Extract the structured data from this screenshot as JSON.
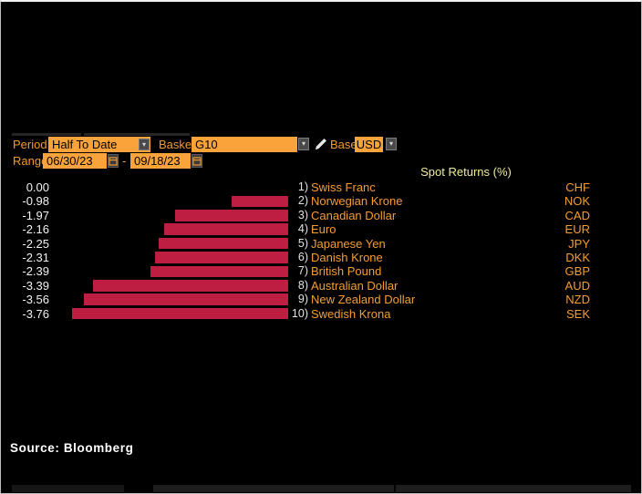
{
  "icons": {
    "chevron_down": "▾",
    "pencil": "pencil-icon",
    "calendar": "calendar-icon"
  },
  "colors": {
    "amber_field": "#f9a33a",
    "orange_text": "#f09c2f",
    "bar_red": "#be1e42",
    "title_yellow": "#f0ec9d",
    "background": "#000000"
  },
  "toolbar": {
    "period_label": "Period",
    "period_value": "Half To Date",
    "basket_label": "Basket",
    "basket_value": "G10",
    "base_label": "Base",
    "base_value": "USD",
    "range_label": "Range",
    "range_start": "06/30/23",
    "range_separator": "-",
    "range_end": "09/18/23"
  },
  "chart_data": {
    "type": "bar",
    "orientation": "horizontal",
    "title": "Spot Returns (%)",
    "xlim": [
      -4,
      0
    ],
    "bar_color": "#be1e42",
    "grid": false,
    "legend": "none",
    "categories": [
      "Swiss Franc",
      "Norwegian Krone",
      "Canadian Dollar",
      "Euro",
      "Japanese Yen",
      "Danish Krone",
      "British Pound",
      "Australian Dollar",
      "New Zealand Dollar",
      "Swedish Krona"
    ],
    "values": [
      0.0,
      -0.98,
      -1.97,
      -2.16,
      -2.25,
      -2.31,
      -2.39,
      -3.39,
      -3.56,
      -3.76
    ],
    "rows": [
      {
        "rank": "1)",
        "name": "Swiss Franc",
        "code": "CHF",
        "value": 0.0,
        "display": "0.00"
      },
      {
        "rank": "2)",
        "name": "Norwegian Krone",
        "code": "NOK",
        "value": -0.98,
        "display": "-0.98"
      },
      {
        "rank": "3)",
        "name": "Canadian Dollar",
        "code": "CAD",
        "value": -1.97,
        "display": "-1.97"
      },
      {
        "rank": "4)",
        "name": "Euro",
        "code": "EUR",
        "value": -2.16,
        "display": "-2.16"
      },
      {
        "rank": "5)",
        "name": "Japanese Yen",
        "code": "JPY",
        "value": -2.25,
        "display": "-2.25"
      },
      {
        "rank": "6)",
        "name": "Danish Krone",
        "code": "DKK",
        "value": -2.31,
        "display": "-2.31"
      },
      {
        "rank": "7)",
        "name": "British Pound",
        "code": "GBP",
        "value": -2.39,
        "display": "-2.39"
      },
      {
        "rank": "8)",
        "name": "Australian Dollar",
        "code": "AUD",
        "value": -3.39,
        "display": "-3.39"
      },
      {
        "rank": "9)",
        "name": "New Zealand Dollar",
        "code": "NZD",
        "value": -3.56,
        "display": "-3.56"
      },
      {
        "rank": "10)",
        "name": "Swedish Krona",
        "code": "SEK",
        "value": -3.76,
        "display": "-3.76"
      }
    ]
  },
  "footer": {
    "source": "Source: Bloomberg"
  }
}
